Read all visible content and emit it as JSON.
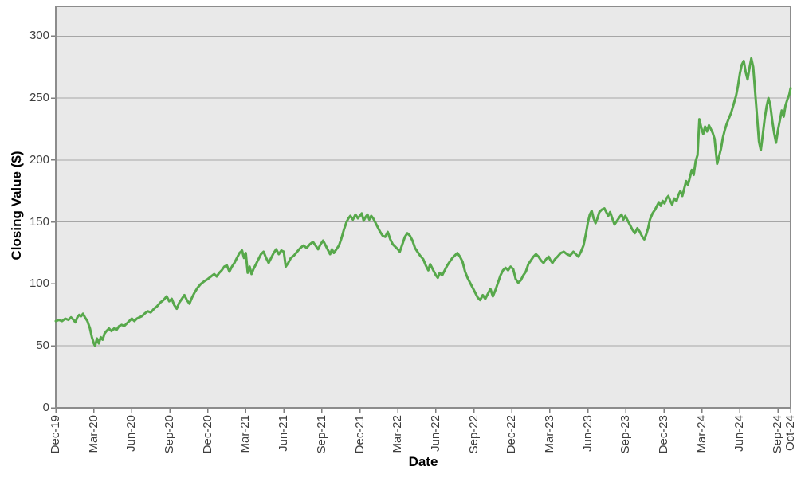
{
  "chart_data": {
    "type": "line",
    "title": "",
    "xlabel": "Date",
    "ylabel": "Closing Value ($)",
    "legend": false,
    "grid": true,
    "line_color": "#57a84b",
    "plot_bg": "#e9e9e9",
    "grid_color": "#a6a6a6",
    "border_color": "#8c8c8c",
    "tick_color": "#7f7f7f",
    "label_color": "#3e3e3e",
    "ylim": [
      0,
      324
    ],
    "xlim": [
      0,
      58
    ],
    "y_ticks": [
      0,
      50,
      100,
      150,
      200,
      250,
      300
    ],
    "x_ticks": [
      {
        "m": 0,
        "label": "Dec-19"
      },
      {
        "m": 3,
        "label": "Mar-20"
      },
      {
        "m": 6,
        "label": "Jun-20"
      },
      {
        "m": 9,
        "label": "Sep-20"
      },
      {
        "m": 12,
        "label": "Dec-20"
      },
      {
        "m": 15,
        "label": "Mar-21"
      },
      {
        "m": 18,
        "label": "Jun-21"
      },
      {
        "m": 21,
        "label": "Sep-21"
      },
      {
        "m": 24,
        "label": "Dec-21"
      },
      {
        "m": 27,
        "label": "Mar-22"
      },
      {
        "m": 30,
        "label": "Jun-22"
      },
      {
        "m": 33,
        "label": "Sep-22"
      },
      {
        "m": 36,
        "label": "Dec-22"
      },
      {
        "m": 39,
        "label": "Mar-23"
      },
      {
        "m": 42,
        "label": "Jun-23"
      },
      {
        "m": 45,
        "label": "Sep-23"
      },
      {
        "m": 48,
        "label": "Dec-23"
      },
      {
        "m": 51,
        "label": "Mar-24"
      },
      {
        "m": 54,
        "label": "Jun-24"
      },
      {
        "m": 57,
        "label": "Sep-24"
      },
      {
        "m": 58,
        "label": "Oct-24"
      }
    ],
    "points": [
      [
        0,
        70
      ],
      [
        0.25,
        71
      ],
      [
        0.5,
        70
      ],
      [
        0.75,
        72
      ],
      [
        1.0,
        71
      ],
      [
        1.2,
        73
      ],
      [
        1.4,
        71
      ],
      [
        1.55,
        69
      ],
      [
        1.7,
        73
      ],
      [
        1.85,
        75
      ],
      [
        2.0,
        74
      ],
      [
        2.15,
        76
      ],
      [
        2.3,
        73
      ],
      [
        2.5,
        70
      ],
      [
        2.7,
        64
      ],
      [
        2.85,
        57
      ],
      [
        3.0,
        52
      ],
      [
        3.1,
        50
      ],
      [
        3.25,
        56
      ],
      [
        3.4,
        52
      ],
      [
        3.55,
        57
      ],
      [
        3.7,
        55
      ],
      [
        3.85,
        60
      ],
      [
        4.0,
        62
      ],
      [
        4.2,
        64
      ],
      [
        4.4,
        62
      ],
      [
        4.6,
        64
      ],
      [
        4.8,
        63
      ],
      [
        5.0,
        66
      ],
      [
        5.2,
        67
      ],
      [
        5.4,
        66
      ],
      [
        5.6,
        68
      ],
      [
        5.8,
        70
      ],
      [
        6.0,
        72
      ],
      [
        6.2,
        70
      ],
      [
        6.4,
        72
      ],
      [
        6.6,
        73
      ],
      [
        6.8,
        74
      ],
      [
        7.0,
        76
      ],
      [
        7.25,
        78
      ],
      [
        7.5,
        77
      ],
      [
        7.75,
        80
      ],
      [
        8.0,
        82
      ],
      [
        8.25,
        85
      ],
      [
        8.5,
        87
      ],
      [
        8.75,
        90
      ],
      [
        8.95,
        86
      ],
      [
        9.15,
        88
      ],
      [
        9.35,
        83
      ],
      [
        9.55,
        80
      ],
      [
        9.75,
        85
      ],
      [
        9.95,
        88
      ],
      [
        10.15,
        91
      ],
      [
        10.35,
        87
      ],
      [
        10.55,
        84
      ],
      [
        10.75,
        89
      ],
      [
        10.95,
        93
      ],
      [
        11.2,
        97
      ],
      [
        11.45,
        100
      ],
      [
        11.7,
        102
      ],
      [
        12.0,
        104
      ],
      [
        12.25,
        106
      ],
      [
        12.5,
        108
      ],
      [
        12.7,
        106
      ],
      [
        12.9,
        109
      ],
      [
        13.1,
        111
      ],
      [
        13.3,
        114
      ],
      [
        13.5,
        115
      ],
      [
        13.7,
        110
      ],
      [
        13.9,
        114
      ],
      [
        14.1,
        117
      ],
      [
        14.3,
        121
      ],
      [
        14.5,
        125
      ],
      [
        14.7,
        127
      ],
      [
        14.85,
        121
      ],
      [
        15.0,
        125
      ],
      [
        15.15,
        109
      ],
      [
        15.3,
        114
      ],
      [
        15.45,
        108
      ],
      [
        15.6,
        112
      ],
      [
        15.8,
        116
      ],
      [
        16.0,
        120
      ],
      [
        16.2,
        124
      ],
      [
        16.4,
        126
      ],
      [
        16.6,
        121
      ],
      [
        16.8,
        117
      ],
      [
        17.0,
        121
      ],
      [
        17.2,
        125
      ],
      [
        17.4,
        128
      ],
      [
        17.6,
        124
      ],
      [
        17.8,
        127
      ],
      [
        18.0,
        126
      ],
      [
        18.15,
        114
      ],
      [
        18.35,
        117
      ],
      [
        18.55,
        121
      ],
      [
        18.8,
        123
      ],
      [
        19.05,
        126
      ],
      [
        19.3,
        129
      ],
      [
        19.55,
        131
      ],
      [
        19.8,
        129
      ],
      [
        20.05,
        132
      ],
      [
        20.3,
        134
      ],
      [
        20.5,
        131
      ],
      [
        20.7,
        128
      ],
      [
        20.9,
        132
      ],
      [
        21.1,
        135
      ],
      [
        21.3,
        131
      ],
      [
        21.5,
        127
      ],
      [
        21.65,
        124
      ],
      [
        21.8,
        128
      ],
      [
        21.95,
        125
      ],
      [
        22.15,
        128
      ],
      [
        22.35,
        131
      ],
      [
        22.55,
        137
      ],
      [
        22.75,
        144
      ],
      [
        22.95,
        150
      ],
      [
        23.1,
        153
      ],
      [
        23.25,
        155
      ],
      [
        23.45,
        152
      ],
      [
        23.65,
        156
      ],
      [
        23.85,
        153
      ],
      [
        24.0,
        155
      ],
      [
        24.15,
        157
      ],
      [
        24.3,
        151
      ],
      [
        24.45,
        154
      ],
      [
        24.6,
        156
      ],
      [
        24.75,
        152
      ],
      [
        24.9,
        155
      ],
      [
        25.05,
        153
      ],
      [
        25.2,
        150
      ],
      [
        25.4,
        146
      ],
      [
        25.6,
        142
      ],
      [
        25.8,
        139
      ],
      [
        26.0,
        138
      ],
      [
        26.2,
        142
      ],
      [
        26.4,
        136
      ],
      [
        26.6,
        132
      ],
      [
        26.8,
        130
      ],
      [
        27.0,
        128
      ],
      [
        27.15,
        126
      ],
      [
        27.35,
        132
      ],
      [
        27.55,
        138
      ],
      [
        27.75,
        141
      ],
      [
        27.95,
        139
      ],
      [
        28.15,
        135
      ],
      [
        28.35,
        129
      ],
      [
        28.55,
        126
      ],
      [
        28.75,
        123
      ],
      [
        29.0,
        120
      ],
      [
        29.2,
        115
      ],
      [
        29.4,
        111
      ],
      [
        29.55,
        116
      ],
      [
        29.7,
        113
      ],
      [
        29.85,
        110
      ],
      [
        30.0,
        107
      ],
      [
        30.15,
        105
      ],
      [
        30.3,
        109
      ],
      [
        30.5,
        107
      ],
      [
        30.7,
        111
      ],
      [
        30.9,
        115
      ],
      [
        31.1,
        118
      ],
      [
        31.3,
        121
      ],
      [
        31.5,
        123
      ],
      [
        31.7,
        125
      ],
      [
        31.9,
        122
      ],
      [
        32.1,
        118
      ],
      [
        32.3,
        110
      ],
      [
        32.5,
        105
      ],
      [
        32.7,
        101
      ],
      [
        32.9,
        97
      ],
      [
        33.1,
        93
      ],
      [
        33.3,
        89
      ],
      [
        33.5,
        87
      ],
      [
        33.7,
        91
      ],
      [
        33.9,
        88
      ],
      [
        34.1,
        92
      ],
      [
        34.3,
        96
      ],
      [
        34.5,
        90
      ],
      [
        34.7,
        95
      ],
      [
        34.9,
        101
      ],
      [
        35.1,
        107
      ],
      [
        35.3,
        111
      ],
      [
        35.5,
        113
      ],
      [
        35.7,
        111
      ],
      [
        35.9,
        114
      ],
      [
        36.1,
        112
      ],
      [
        36.3,
        104
      ],
      [
        36.5,
        101
      ],
      [
        36.7,
        103
      ],
      [
        36.9,
        107
      ],
      [
        37.1,
        110
      ],
      [
        37.3,
        116
      ],
      [
        37.5,
        119
      ],
      [
        37.7,
        122
      ],
      [
        37.9,
        124
      ],
      [
        38.1,
        122
      ],
      [
        38.3,
        119
      ],
      [
        38.5,
        117
      ],
      [
        38.7,
        120
      ],
      [
        38.9,
        122
      ],
      [
        39.05,
        119
      ],
      [
        39.2,
        117
      ],
      [
        39.4,
        120
      ],
      [
        39.6,
        122
      ],
      [
        39.85,
        125
      ],
      [
        40.1,
        126
      ],
      [
        40.35,
        124
      ],
      [
        40.6,
        123
      ],
      [
        40.85,
        126
      ],
      [
        41.05,
        124
      ],
      [
        41.25,
        122
      ],
      [
        41.45,
        126
      ],
      [
        41.65,
        131
      ],
      [
        41.85,
        141
      ],
      [
        42.0,
        150
      ],
      [
        42.15,
        156
      ],
      [
        42.3,
        159
      ],
      [
        42.45,
        153
      ],
      [
        42.6,
        149
      ],
      [
        42.75,
        153
      ],
      [
        42.9,
        158
      ],
      [
        43.1,
        160
      ],
      [
        43.3,
        161
      ],
      [
        43.45,
        158
      ],
      [
        43.6,
        155
      ],
      [
        43.75,
        158
      ],
      [
        43.95,
        152
      ],
      [
        44.1,
        148
      ],
      [
        44.3,
        151
      ],
      [
        44.5,
        154
      ],
      [
        44.65,
        156
      ],
      [
        44.8,
        152
      ],
      [
        44.95,
        155
      ],
      [
        45.1,
        152
      ],
      [
        45.3,
        148
      ],
      [
        45.5,
        144
      ],
      [
        45.7,
        141
      ],
      [
        45.9,
        145
      ],
      [
        46.1,
        142
      ],
      [
        46.3,
        138
      ],
      [
        46.45,
        136
      ],
      [
        46.6,
        140
      ],
      [
        46.75,
        145
      ],
      [
        46.9,
        152
      ],
      [
        47.1,
        157
      ],
      [
        47.3,
        160
      ],
      [
        47.45,
        163
      ],
      [
        47.6,
        166
      ],
      [
        47.75,
        163
      ],
      [
        47.9,
        167
      ],
      [
        48.05,
        165
      ],
      [
        48.2,
        169
      ],
      [
        48.35,
        171
      ],
      [
        48.5,
        167
      ],
      [
        48.65,
        164
      ],
      [
        48.8,
        169
      ],
      [
        49.0,
        167
      ],
      [
        49.15,
        172
      ],
      [
        49.3,
        175
      ],
      [
        49.45,
        171
      ],
      [
        49.6,
        177
      ],
      [
        49.75,
        183
      ],
      [
        49.9,
        180
      ],
      [
        50.05,
        186
      ],
      [
        50.2,
        192
      ],
      [
        50.35,
        188
      ],
      [
        50.5,
        199
      ],
      [
        50.65,
        204
      ],
      [
        50.8,
        233
      ],
      [
        50.95,
        226
      ],
      [
        51.1,
        221
      ],
      [
        51.25,
        227
      ],
      [
        51.4,
        223
      ],
      [
        51.55,
        228
      ],
      [
        51.7,
        225
      ],
      [
        51.85,
        222
      ],
      [
        52.0,
        217
      ],
      [
        52.2,
        197
      ],
      [
        52.35,
        203
      ],
      [
        52.5,
        209
      ],
      [
        52.65,
        218
      ],
      [
        52.8,
        224
      ],
      [
        52.95,
        229
      ],
      [
        53.1,
        233
      ],
      [
        53.3,
        238
      ],
      [
        53.5,
        245
      ],
      [
        53.7,
        252
      ],
      [
        53.85,
        260
      ],
      [
        54.0,
        270
      ],
      [
        54.15,
        277
      ],
      [
        54.3,
        280
      ],
      [
        54.45,
        271
      ],
      [
        54.6,
        265
      ],
      [
        54.75,
        274
      ],
      [
        54.9,
        282
      ],
      [
        55.05,
        275
      ],
      [
        55.2,
        255
      ],
      [
        55.35,
        235
      ],
      [
        55.5,
        215
      ],
      [
        55.65,
        208
      ],
      [
        55.8,
        220
      ],
      [
        55.95,
        233
      ],
      [
        56.1,
        243
      ],
      [
        56.25,
        250
      ],
      [
        56.4,
        244
      ],
      [
        56.55,
        232
      ],
      [
        56.7,
        222
      ],
      [
        56.85,
        214
      ],
      [
        57.0,
        224
      ],
      [
        57.15,
        232
      ],
      [
        57.3,
        240
      ],
      [
        57.45,
        235
      ],
      [
        57.6,
        244
      ],
      [
        57.75,
        249
      ],
      [
        57.9,
        253
      ],
      [
        58.0,
        258
      ]
    ]
  }
}
